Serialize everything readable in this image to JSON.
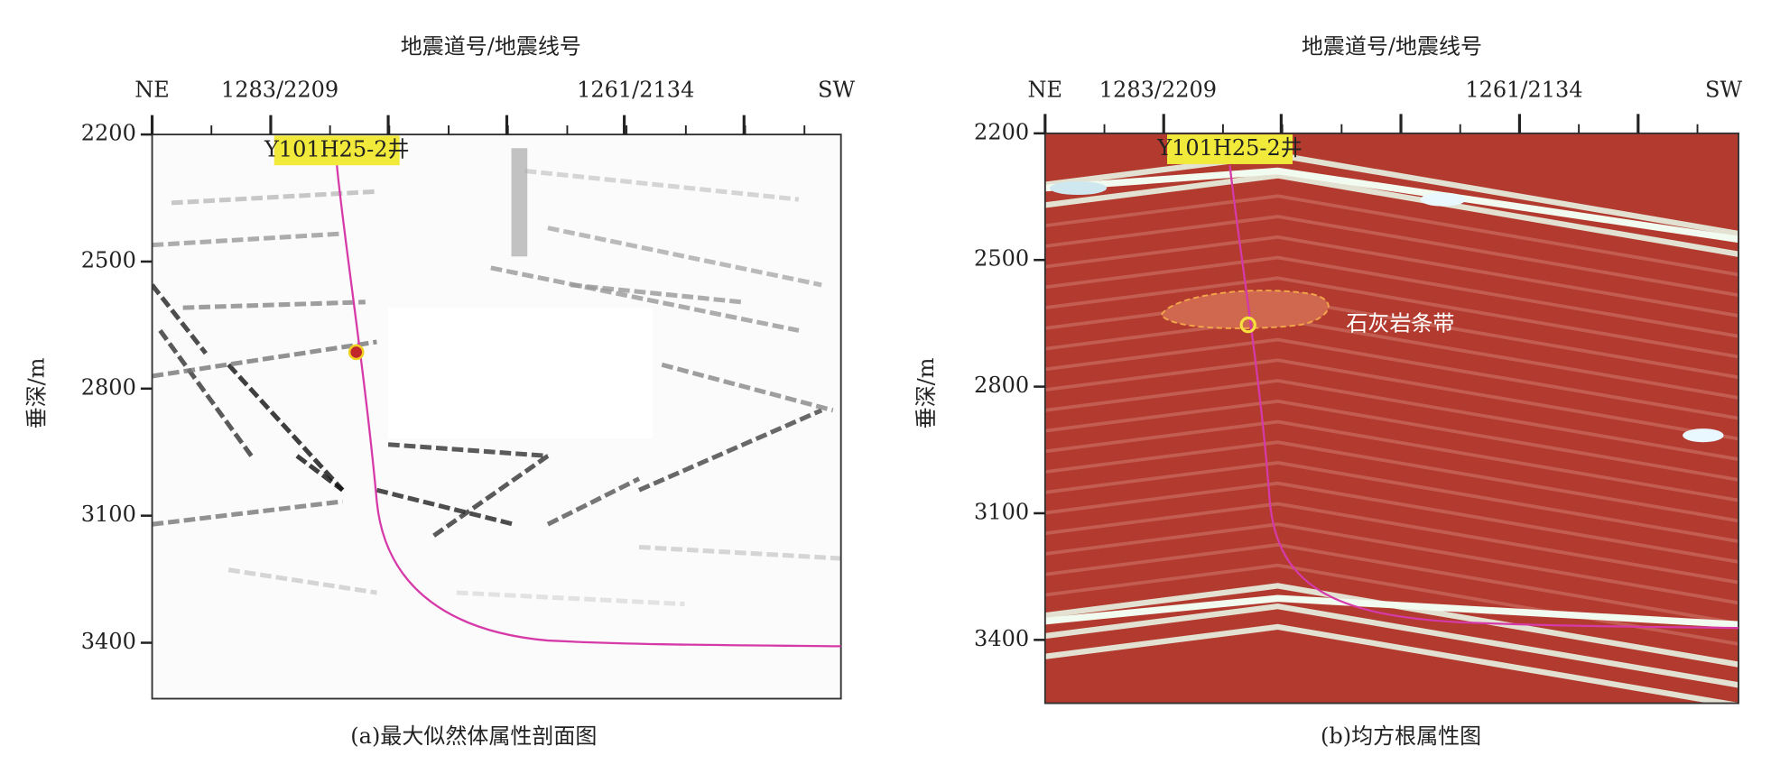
{
  "panels": [
    {
      "x_axis_label": "地震道号/地震线号",
      "top_labels": [
        "NE",
        "1283/2209",
        "1261/2134",
        "SW"
      ],
      "y_axis_label": "垂深/m",
      "yticks": [
        2200,
        2500,
        2800,
        3100,
        3400
      ],
      "ylim": [
        2200,
        3532
      ],
      "well_label": "Y101H25-2井",
      "caption": "(a)最大似然体属性剖面图"
    },
    {
      "x_axis_label": "地震道号/地震线号",
      "top_labels": [
        "NE",
        "1283/2209",
        "1261/2134",
        "SW"
      ],
      "y_axis_label": "垂深/m",
      "yticks": [
        2200,
        2500,
        2800,
        3100,
        3400
      ],
      "ylim": [
        2200,
        3550
      ],
      "well_label": "Y101H25-2井",
      "annotation": "石灰岩条带",
      "caption": "(b)均方根属性图"
    }
  ]
}
